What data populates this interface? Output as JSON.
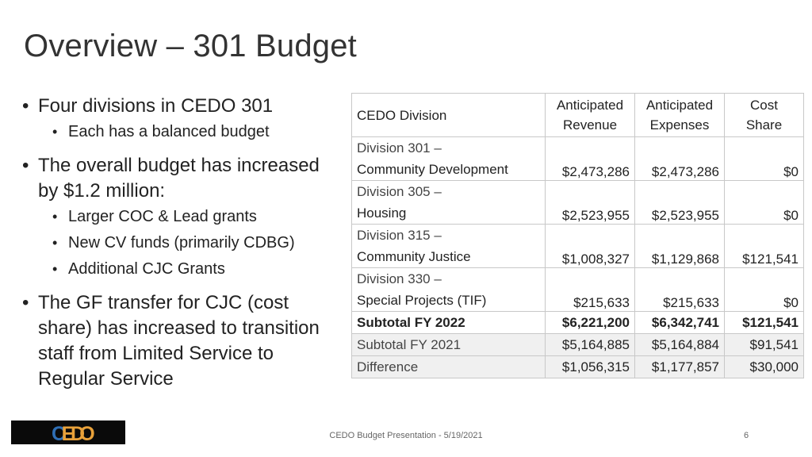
{
  "title": "Overview – 301 Budget",
  "bullets": {
    "b1": "Four divisions in CEDO 301",
    "b1_sub": "Each has a balanced budget",
    "b2": "The overall budget has increased by $1.2 million:",
    "b2_sub": [
      "Larger COC & Lead grants",
      "New CV funds (primarily CDBG)",
      "Additional CJC Grants"
    ],
    "b3": "The GF transfer for CJC (cost share) has increased to transition staff from Limited Service to Regular Service"
  },
  "table": {
    "headers": {
      "division": "CEDO Division",
      "revenue": [
        "Anticipated",
        "Revenue"
      ],
      "expenses": [
        "Anticipated",
        "Expenses"
      ],
      "share": [
        "Cost",
        "Share"
      ]
    },
    "rows": [
      {
        "div_line1": "Division   301 –",
        "div_line2": "Community Development",
        "revenue": "$2,473,286",
        "expenses": "$2,473,286",
        "share": "$0"
      },
      {
        "div_line1": "Division   305 –",
        "div_line2": "Housing",
        "revenue": "$2,523,955",
        "expenses": "$2,523,955",
        "share": "$0"
      },
      {
        "div_line1": "Division   315 –",
        "div_line2": "Community Justice",
        "revenue": "$1,008,327",
        "expenses": "$1,129,868",
        "share": "$121,541"
      },
      {
        "div_line1": "Division   330 –",
        "div_line2": "Special Projects (TIF)",
        "revenue": "$215,633",
        "expenses": "$215,633",
        "share": "$0"
      }
    ],
    "subtotal_2022": {
      "label": "Subtotal FY 2022",
      "revenue": "$6,221,200",
      "expenses": "$6,342,741",
      "share": "$121,541"
    },
    "subtotal_2021": {
      "label": "Subtotal FY 2021",
      "revenue": "$5,164,885",
      "expenses": "$5,164,884",
      "share": "$91,541"
    },
    "difference": {
      "label": "Difference",
      "revenue": "$1,056,315",
      "expenses": "$1,177,857",
      "share": "$30,000"
    }
  },
  "logo": {
    "text": "CEDO",
    "letter_colors": [
      "#2f6fb5",
      "#e8a13a",
      "#e8a13a",
      "#e8a13a"
    ]
  },
  "footer": "CEDO Budget Presentation - 5/19/2021",
  "page_number": "6"
}
